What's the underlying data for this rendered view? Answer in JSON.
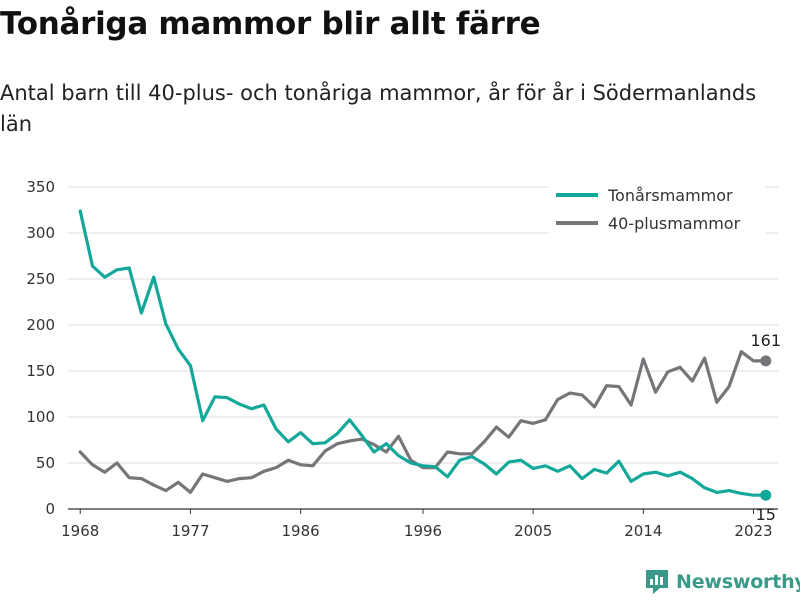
{
  "header": {
    "title": "Tonåriga mammor blir allt färre",
    "subtitle": "Antal barn till 40-plus- och tonåriga mammor, år för år i Södermanlands län"
  },
  "logo": {
    "text": "Newsworthy",
    "icon": "bar-chart-logo-icon"
  },
  "colors": {
    "teen": "#14a89a",
    "plus40": "#76767a",
    "grid": "#dddddd",
    "logo": "#3a9a8a"
  },
  "chart_data": {
    "type": "line",
    "title": "Tonåriga mammor blir allt färre",
    "subtitle": "Antal barn till 40-plus- och tonåriga mammor, år för år i Södermanlands län",
    "xlabel": "",
    "ylabel": "",
    "x": [
      1968,
      1969,
      1970,
      1971,
      1972,
      1973,
      1974,
      1975,
      1976,
      1977,
      1978,
      1979,
      1980,
      1981,
      1982,
      1983,
      1984,
      1985,
      1986,
      1987,
      1988,
      1989,
      1990,
      1991,
      1992,
      1993,
      1994,
      1995,
      1996,
      1997,
      1998,
      1999,
      2000,
      2001,
      2002,
      2003,
      2004,
      2005,
      2006,
      2007,
      2008,
      2009,
      2010,
      2011,
      2012,
      2013,
      2014,
      2015,
      2016,
      2017,
      2018,
      2019,
      2020,
      2021,
      2022,
      2023,
      2024
    ],
    "xticks": [
      "1968",
      "1977",
      "1986",
      "1996",
      "2005",
      "2014",
      "2023"
    ],
    "xlim": [
      1967,
      2025
    ],
    "yticks": [
      "0",
      "50",
      "100",
      "150",
      "200",
      "250",
      "300",
      "350"
    ],
    "ylim": [
      0,
      350
    ],
    "grid": "horizontal",
    "legend_position": "top-right",
    "series": [
      {
        "name": "Tonårsmammor",
        "color": "#14a89a",
        "values": [
          324,
          264,
          252,
          260,
          262,
          213,
          252,
          201,
          174,
          156,
          96,
          122,
          121,
          114,
          109,
          113,
          87,
          73,
          83,
          71,
          72,
          82,
          97,
          80,
          62,
          71,
          58,
          50,
          47,
          46,
          35,
          53,
          57,
          49,
          38,
          51,
          53,
          44,
          47,
          41,
          47,
          33,
          43,
          39,
          52,
          30,
          38,
          40,
          36,
          40,
          33,
          23,
          18,
          20,
          17,
          15,
          15
        ],
        "end_label": "15"
      },
      {
        "name": "40-plusmammor",
        "color": "#76767a",
        "values": [
          62,
          48,
          40,
          50,
          34,
          33,
          26,
          20,
          29,
          18,
          38,
          34,
          30,
          33,
          34,
          41,
          45,
          53,
          48,
          47,
          63,
          71,
          74,
          76,
          70,
          62,
          79,
          53,
          45,
          45,
          62,
          60,
          60,
          73,
          89,
          78,
          96,
          93,
          97,
          119,
          126,
          124,
          111,
          134,
          133,
          113,
          163,
          127,
          149,
          154,
          139,
          164,
          116,
          133,
          171,
          161,
          161
        ],
        "end_label": "161"
      }
    ]
  }
}
